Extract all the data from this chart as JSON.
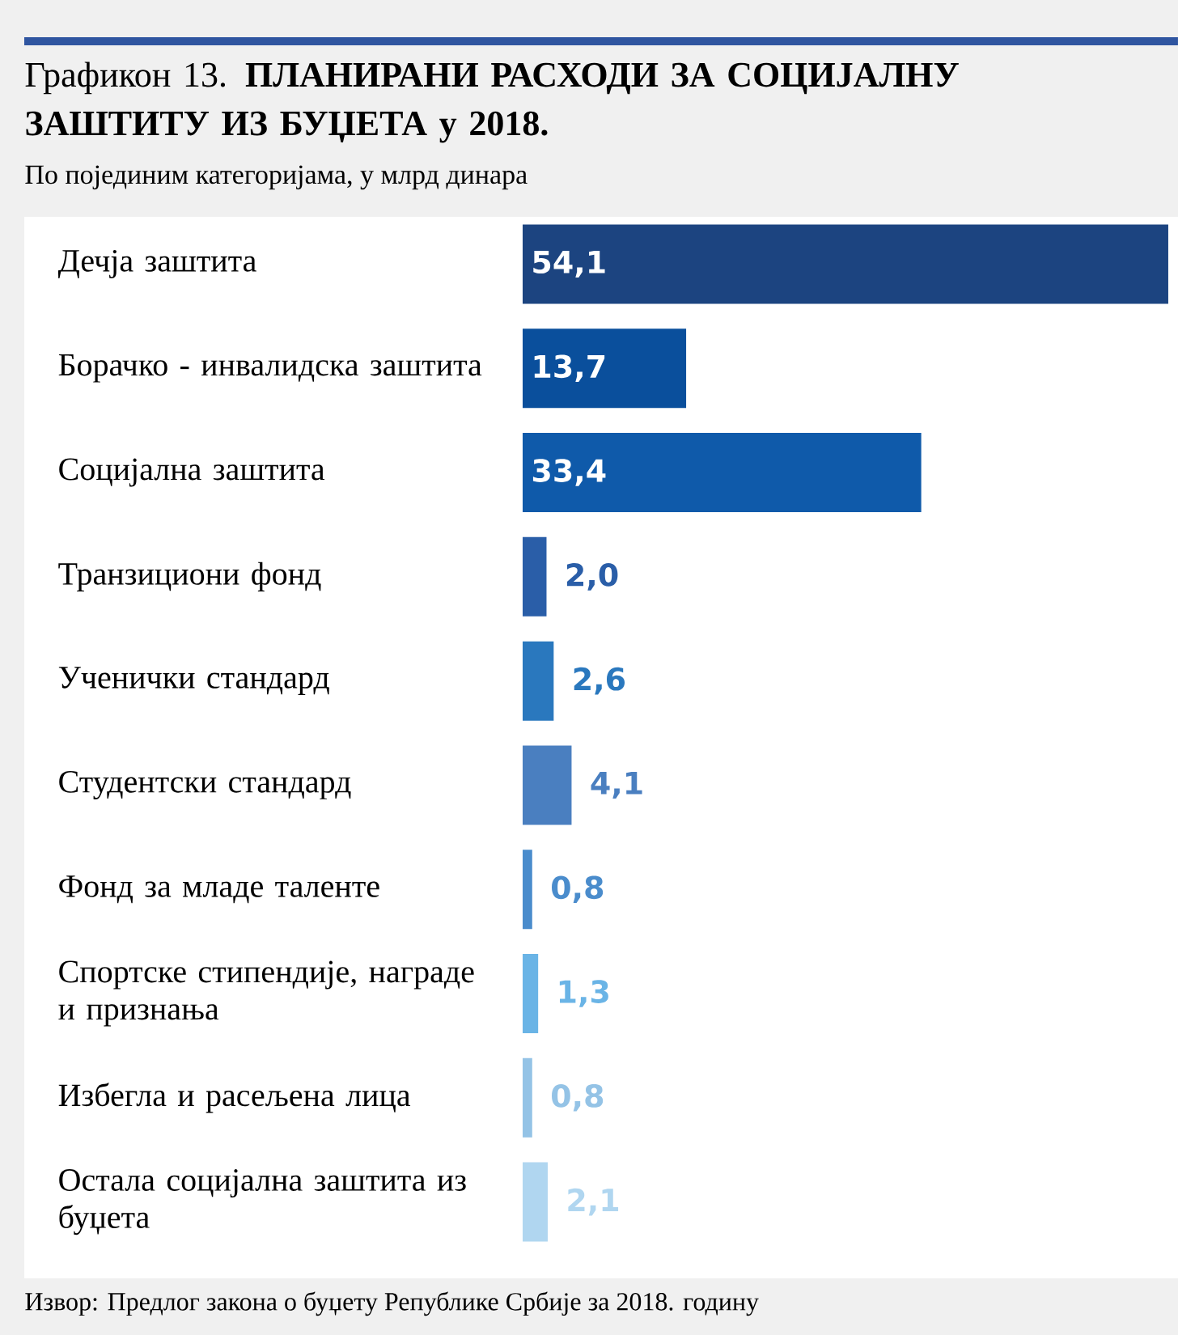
{
  "chart_data": {
    "type": "bar",
    "orientation": "horizontal",
    "title": "Графикон 13. **ПЛАНИРАНИ РАСХОДИ ЗА СОЦИЈАЛНУ ЗАШТИТУ ИЗ БУЏЕТА у 2018.**",
    "subtitle": "По појединим категоријама, у млрд динара",
    "categories": [
      "Дечја заштита",
      "Борачко - инвалидска заштита",
      "Социјална заштита",
      "Транзициони фонд",
      "Ученички стандард",
      "Студентски стандард",
      "Фонд за младе таленте",
      "Спортске стипендије, награде и признања",
      "Избегла и расељена лица",
      "Остала социјална заштита из буџета"
    ],
    "values": [
      54.1,
      13.7,
      33.4,
      2.0,
      2.6,
      4.1,
      0.8,
      1.3,
      0.8,
      2.1
    ],
    "value_labels": [
      "54,1",
      "13,7",
      "33,4",
      "2,0",
      "2,6",
      "4,1",
      "0,8",
      "1,3",
      "0,8",
      "2,1"
    ],
    "colors": [
      "#1c4480",
      "#0a4f9c",
      "#0f5aaa",
      "#2a5ea8",
      "#2a78be",
      "#4a7fc0",
      "#4a8ccc",
      "#6ab4e6",
      "#94c3e6",
      "#b0d6f0"
    ],
    "annotations": [
      "Извор: Предлог закона о буџету Републике Србије за 2018. годину"
    ]
  }
}
